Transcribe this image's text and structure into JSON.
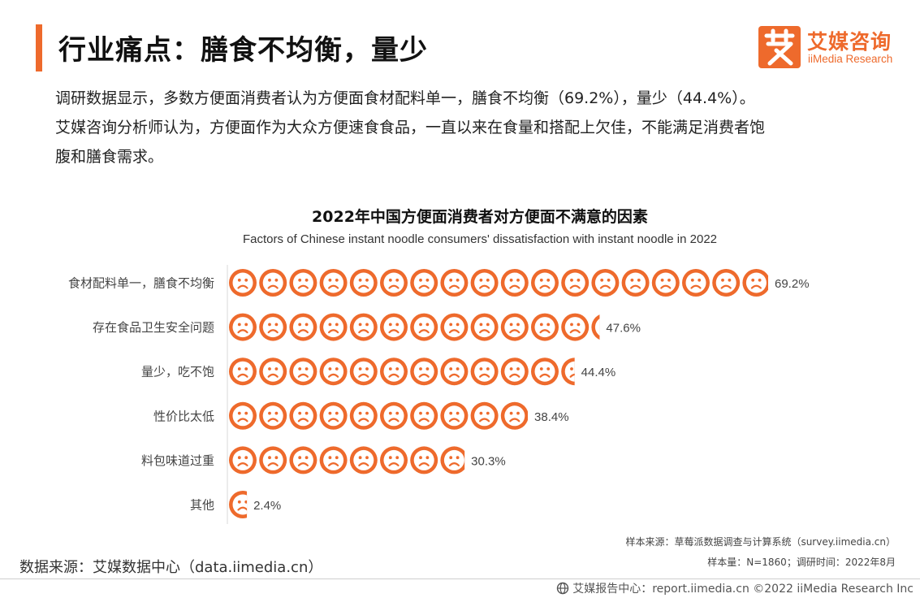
{
  "header": {
    "title": "行业痛点：膳食不均衡，量少",
    "logo_cn": "艾媒咨询",
    "logo_en": "iiMedia Research"
  },
  "intro": {
    "line1": "调研数据显示，多数方便面消费者认为方便面食材配料单一，膳食不均衡（69.2%），量少（44.4%）。",
    "line2": "艾媒咨询分析师认为，方便面作为大众方便速食食品，一直以来在食量和搭配上欠佳，不能满足消费者饱",
    "line3": "腹和膳食需求。"
  },
  "chart_data": {
    "type": "bar",
    "orientation": "horizontal",
    "title": "2022年中国方便面消费者对方便面不满意的因素",
    "subtitle": "Factors of Chinese instant noodle consumers' dissatisfaction with instant noodle in 2022",
    "categories": [
      "食材配料单一，膳食不均衡",
      "存在食品卫生安全问题",
      "量少，吃不饱",
      "性价比太低",
      "料包味道过重",
      "其他"
    ],
    "values": [
      69.2,
      47.6,
      44.4,
      38.4,
      30.3,
      2.4
    ],
    "value_labels": [
      "69.2%",
      "47.6%",
      "44.4%",
      "38.4%",
      "30.3%",
      "2.4%"
    ],
    "unit": "%",
    "marker": "sad-face-icon",
    "color": "#ee6a2c"
  },
  "notes": {
    "sample_source": "样本来源：草莓派数据调查与计算系统（survey.iimedia.cn）",
    "sample_info": "样本量：N=1860；调研时间：2022年8月"
  },
  "source": "数据来源：艾媒数据中心（data.iimedia.cn）",
  "footer": {
    "text": "艾媒报告中心：report.iimedia.cn  ©2022  iiMedia Research  Inc"
  }
}
